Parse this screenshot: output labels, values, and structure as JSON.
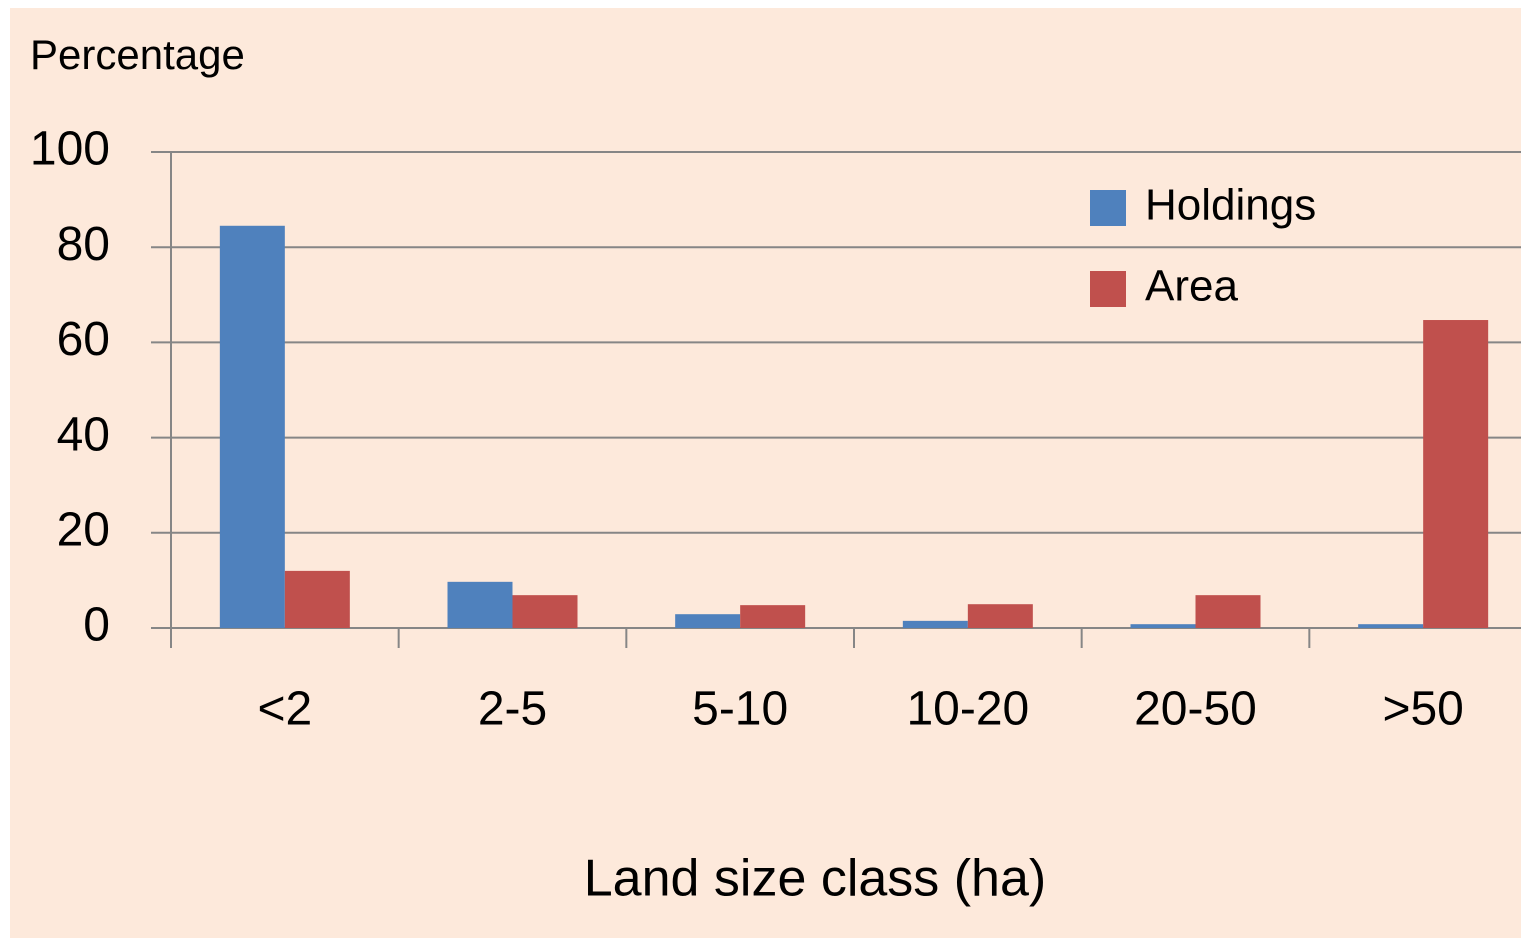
{
  "chart_data": {
    "type": "bar",
    "y_label": "Percentage",
    "x_label": "Land size class (ha)",
    "categories": [
      "<2",
      "2-5",
      "5-10",
      "10-20",
      "20-50",
      ">50"
    ],
    "series": [
      {
        "name": "Holdings",
        "color": "#4f81bd",
        "values": [
          84.5,
          9.7,
          2.9,
          1.5,
          0.8,
          0.8
        ]
      },
      {
        "name": "Area",
        "color": "#c0504d",
        "values": [
          12,
          6.9,
          4.8,
          5,
          6.9,
          64.7
        ]
      }
    ],
    "ylim": [
      0,
      100
    ],
    "yticks": [
      0,
      20,
      40,
      60,
      80,
      100
    ],
    "grid": true,
    "legend": "upper right"
  }
}
